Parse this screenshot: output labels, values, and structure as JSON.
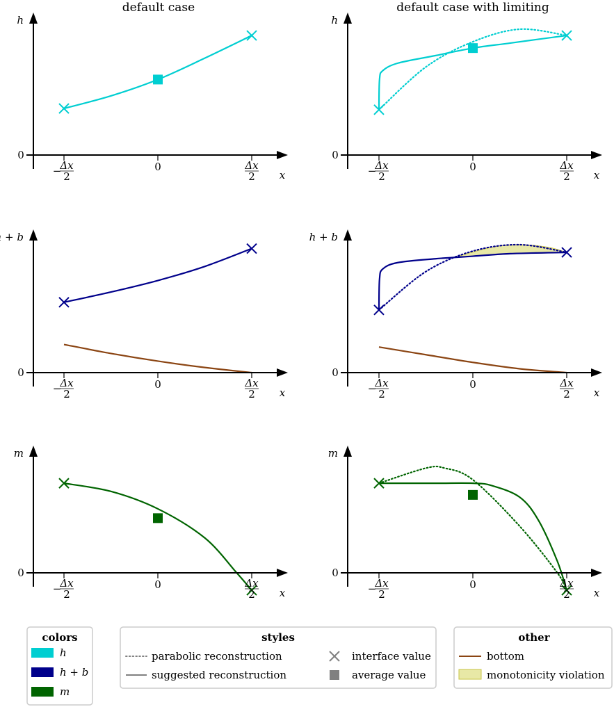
{
  "titles": {
    "left": "default case",
    "right": "default case with limiting"
  },
  "colors": {
    "h": "#00CED1",
    "hb": "#00008B",
    "m": "#006400",
    "bottom": "#8B4513",
    "violation": "#D9D86A",
    "legend_gray": "#808080"
  },
  "ticks": {
    "x_left": "−",
    "x_frac_num": "Δx",
    "x_frac_den": "2",
    "x_zero": "0",
    "y_zero": "0",
    "x_label": "x"
  },
  "chart_data": [
    {
      "type": "line",
      "title": "default case",
      "ylabel": "h",
      "xlabel": "x",
      "x_ticks": [
        "−Δx/2",
        "0",
        "Δx/2"
      ],
      "y_ticks": [
        "0"
      ],
      "xlim": [
        -0.5,
        0.5
      ],
      "ylim": [
        0,
        1
      ],
      "series": [
        {
          "role": "h",
          "style": "solid",
          "x": [
            -0.5,
            -0.25,
            0,
            0.25,
            0.5
          ],
          "y": [
            0.37,
            0.47,
            0.6,
            0.77,
            0.95
          ]
        },
        {
          "role": "h",
          "style": "interface",
          "x": [
            -0.5,
            0.5
          ],
          "y": [
            0.37,
            0.95
          ]
        },
        {
          "role": "h",
          "style": "average",
          "x": [
            0
          ],
          "y": [
            0.6
          ]
        }
      ]
    },
    {
      "type": "line",
      "title": "default case with limiting",
      "ylabel": "h",
      "xlabel": "x",
      "x_ticks": [
        "−Δx/2",
        "0",
        "Δx/2"
      ],
      "y_ticks": [
        "0"
      ],
      "xlim": [
        -0.5,
        0.5
      ],
      "ylim": [
        0,
        1
      ],
      "series": [
        {
          "role": "h",
          "style": "dotted",
          "x": [
            -0.5,
            -0.25,
            0,
            0.25,
            0.5
          ],
          "y": [
            0.36,
            0.7,
            0.9,
            1.0,
            0.95
          ]
        },
        {
          "role": "h",
          "style": "solid",
          "x": [
            -0.5,
            -0.497,
            -0.48,
            -0.4,
            -0.2,
            0,
            0.2,
            0.5
          ],
          "y": [
            0.36,
            0.6,
            0.67,
            0.73,
            0.79,
            0.85,
            0.89,
            0.95
          ]
        },
        {
          "role": "h",
          "style": "interface",
          "x": [
            -0.5,
            0.5
          ],
          "y": [
            0.36,
            0.95
          ]
        },
        {
          "role": "h",
          "style": "average",
          "x": [
            0
          ],
          "y": [
            0.85
          ]
        }
      ]
    },
    {
      "type": "line",
      "ylabel": "h + b",
      "xlabel": "x",
      "x_ticks": [
        "−Δx/2",
        "0",
        "Δx/2"
      ],
      "y_ticks": [
        "0"
      ],
      "xlim": [
        -0.5,
        0.5
      ],
      "ylim": [
        0,
        1
      ],
      "series": [
        {
          "role": "hb",
          "style": "solid",
          "x": [
            -0.5,
            -0.25,
            0,
            0.25,
            0.5
          ],
          "y": [
            0.55,
            0.63,
            0.72,
            0.83,
            0.97
          ]
        },
        {
          "role": "hb",
          "style": "interface",
          "x": [
            -0.5,
            0.5
          ],
          "y": [
            0.55,
            0.97
          ]
        },
        {
          "role": "bottom",
          "style": "solid",
          "x": [
            -0.5,
            -0.25,
            0,
            0.25,
            0.5
          ],
          "y": [
            0.22,
            0.15,
            0.09,
            0.04,
            0.0
          ]
        }
      ]
    },
    {
      "type": "line",
      "ylabel": "h + b",
      "xlabel": "x",
      "x_ticks": [
        "−Δx/2",
        "0",
        "Δx/2"
      ],
      "y_ticks": [
        "0"
      ],
      "xlim": [
        -0.5,
        0.5
      ],
      "ylim": [
        0,
        1
      ],
      "series": [
        {
          "role": "hb",
          "style": "dotted",
          "x": [
            -0.5,
            -0.25,
            0,
            0.25,
            0.5
          ],
          "y": [
            0.49,
            0.79,
            0.95,
            1.0,
            0.94
          ]
        },
        {
          "role": "hb",
          "style": "solid",
          "x": [
            -0.5,
            -0.497,
            -0.48,
            -0.4,
            -0.2,
            0,
            0.2,
            0.5
          ],
          "y": [
            0.49,
            0.73,
            0.81,
            0.86,
            0.89,
            0.91,
            0.93,
            0.94
          ]
        },
        {
          "role": "hb",
          "style": "interface",
          "x": [
            -0.5,
            0.5
          ],
          "y": [
            0.49,
            0.94
          ]
        },
        {
          "role": "bottom",
          "style": "solid",
          "x": [
            -0.5,
            -0.25,
            0,
            0.25,
            0.5
          ],
          "y": [
            0.2,
            0.14,
            0.08,
            0.03,
            0.0
          ]
        },
        {
          "role": "violation",
          "style": "fill",
          "x": [
            -0.1,
            0.1,
            0.25,
            0.4,
            0.5
          ],
          "y_upper": [
            0.9,
            0.98,
            1.0,
            0.98,
            0.94
          ],
          "y_lower": [
            0.9,
            0.92,
            0.93,
            0.935,
            0.94
          ]
        }
      ]
    },
    {
      "type": "line",
      "ylabel": "m",
      "xlabel": "x",
      "x_ticks": [
        "−Δx/2",
        "0",
        "Δx/2"
      ],
      "y_ticks": [
        "0"
      ],
      "xlim": [
        -0.5,
        0.5
      ],
      "ylim": [
        -0.15,
        0.95
      ],
      "series": [
        {
          "role": "m",
          "style": "solid",
          "x": [
            -0.5,
            -0.25,
            0,
            0.25,
            0.42,
            0.5
          ],
          "y": [
            0.77,
            0.7,
            0.55,
            0.3,
            0.0,
            -0.15
          ]
        },
        {
          "role": "m",
          "style": "interface",
          "x": [
            -0.5,
            0.5
          ],
          "y": [
            0.77,
            -0.15
          ]
        },
        {
          "role": "m",
          "style": "average",
          "x": [
            0
          ],
          "y": [
            0.47
          ]
        }
      ]
    },
    {
      "type": "line",
      "ylabel": "m",
      "xlabel": "x",
      "x_ticks": [
        "−Δx/2",
        "0",
        "Δx/2"
      ],
      "y_ticks": [
        "0"
      ],
      "xlim": [
        -0.5,
        0.5
      ],
      "ylim": [
        -0.15,
        0.95
      ],
      "series": [
        {
          "role": "m",
          "style": "dotted",
          "x": [
            -0.5,
            -0.25,
            -0.15,
            0,
            0.25,
            0.45,
            0.5
          ],
          "y": [
            0.77,
            0.9,
            0.9,
            0.8,
            0.4,
            0.0,
            -0.15
          ]
        },
        {
          "role": "m",
          "style": "solid",
          "x": [
            -0.5,
            -0.2,
            0,
            0.1,
            0.25,
            0.35,
            0.45,
            0.5
          ],
          "y": [
            0.77,
            0.77,
            0.77,
            0.75,
            0.65,
            0.45,
            0.1,
            -0.15
          ]
        },
        {
          "role": "m",
          "style": "interface",
          "x": [
            -0.5,
            0.5
          ],
          "y": [
            0.77,
            -0.15
          ]
        },
        {
          "role": "m",
          "style": "average",
          "x": [
            0
          ],
          "y": [
            0.67
          ]
        }
      ]
    }
  ],
  "legend": {
    "colors": {
      "title": "colors",
      "items": [
        {
          "role": "h",
          "label": "h"
        },
        {
          "role": "hb",
          "label": "h + b"
        },
        {
          "role": "m",
          "label": "m"
        }
      ]
    },
    "styles": {
      "title": "styles",
      "items": [
        {
          "kind": "dotted",
          "label": "parabolic reconstruction"
        },
        {
          "kind": "solid",
          "label": "suggested reconstruction"
        },
        {
          "kind": "cross",
          "label": "interface value"
        },
        {
          "kind": "square",
          "label": "average value"
        }
      ]
    },
    "other": {
      "title": "other",
      "items": [
        {
          "kind": "bottom",
          "label": "bottom"
        },
        {
          "kind": "violation",
          "label": "monotonicity violation"
        }
      ]
    }
  }
}
